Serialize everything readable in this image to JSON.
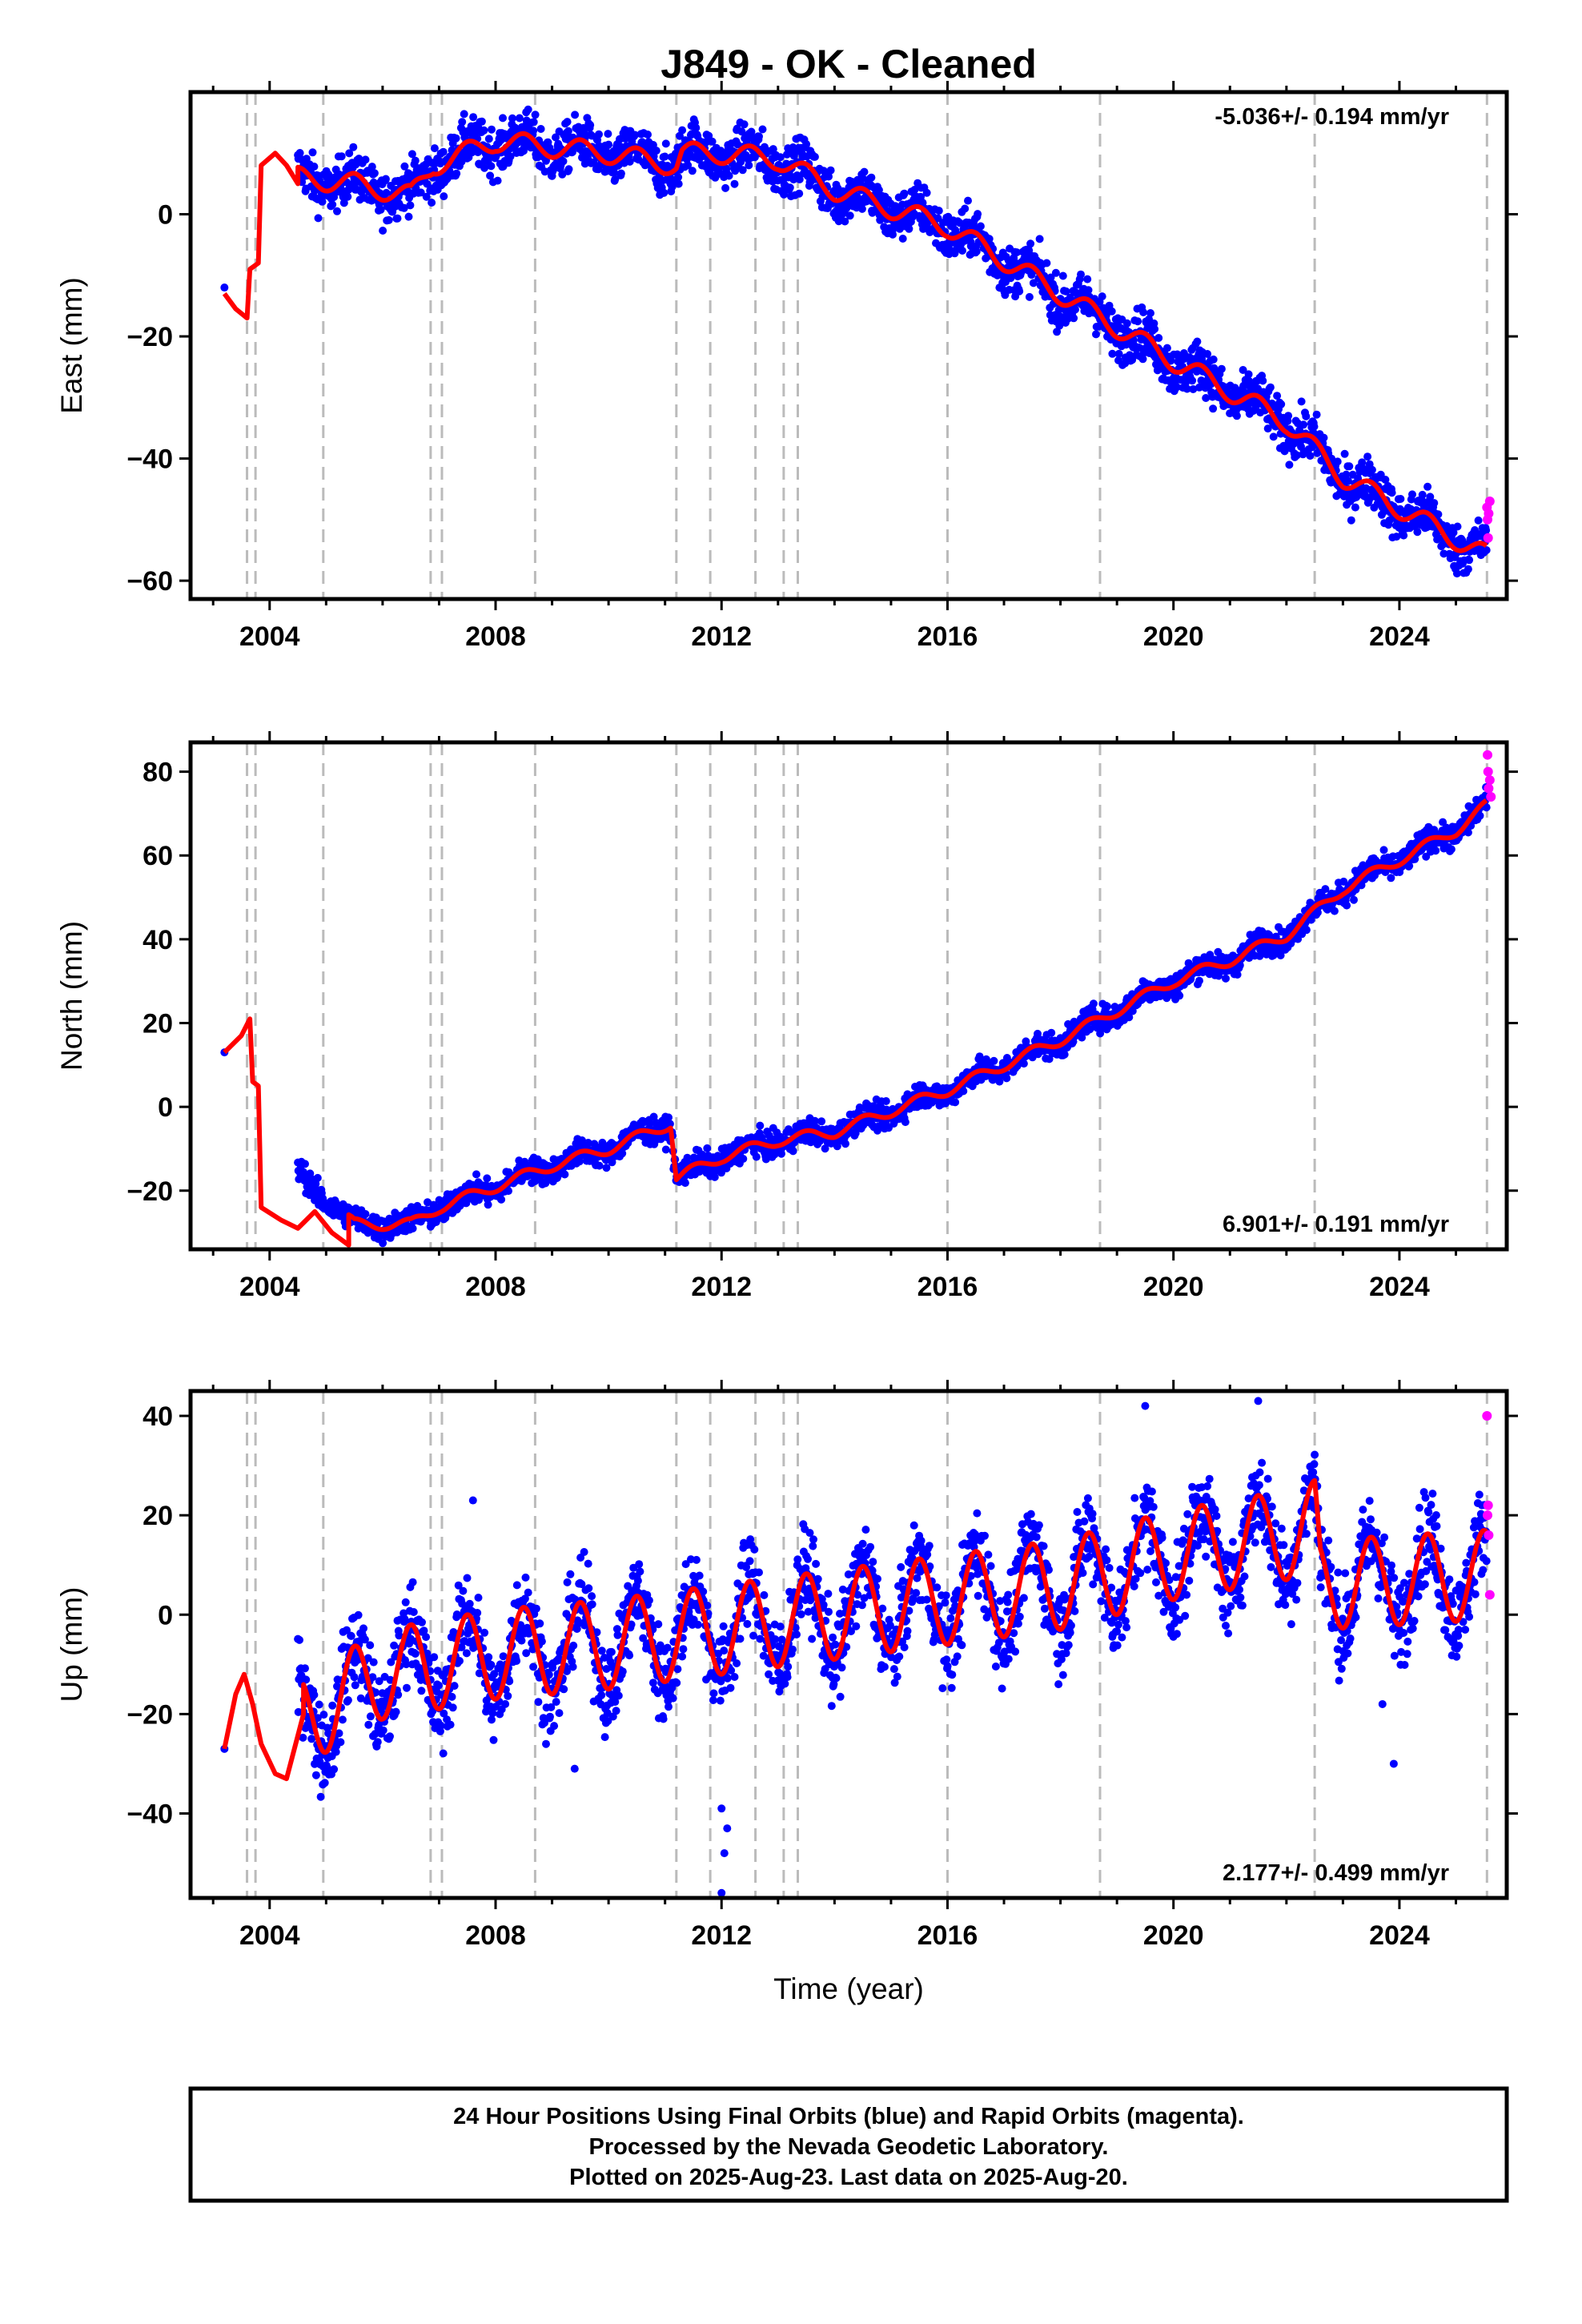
{
  "title": "J849  - OK - Cleaned",
  "xlabel": "Time (year)",
  "colors": {
    "final": "#0000ff",
    "rapid": "#ff00ff",
    "model": "#ff0000",
    "events": "#bbbbbb"
  },
  "footer": {
    "line1": "24 Hour Positions Using Final Orbits (blue) and Rapid Orbits (magenta).",
    "line2": "Processed by the Nevada Geodetic Laboratory.",
    "line3": "Plotted on 2025-Aug-23. Last data on 2025-Aug-20."
  },
  "chart_data": [
    {
      "type": "scatter",
      "component": "East",
      "ylabel": "East (mm)",
      "rate_text": "-5.036+/- 0.194 mm/yr",
      "rate_position": "top-right",
      "xlim": [
        2002.6,
        2025.9
      ],
      "ylim": [
        -63,
        20
      ],
      "xticks": [
        2004,
        2008,
        2012,
        2016,
        2020,
        2024
      ],
      "yticks": [
        -60,
        -40,
        -20,
        0
      ],
      "seasonal_amp": 1.7,
      "noise": 2.0,
      "final_start": 2004.5,
      "final_end": 2025.55,
      "early_points": [
        [
          2003.2,
          -12
        ]
      ],
      "rapid_points": [
        [
          2025.55,
          -48
        ],
        [
          2025.56,
          -50
        ],
        [
          2025.57,
          -53
        ],
        [
          2025.58,
          -49
        ],
        [
          2025.6,
          -47
        ]
      ],
      "trend_knots": [
        [
          2004.5,
          6
        ],
        [
          2005.5,
          5
        ],
        [
          2006.5,
          3
        ],
        [
          2006.9,
          8
        ],
        [
          2008,
          12
        ],
        [
          2009,
          11
        ],
        [
          2010,
          10
        ],
        [
          2011.2,
          8
        ],
        [
          2011.3,
          10
        ],
        [
          2012,
          10
        ],
        [
          2013,
          9
        ],
        [
          2014,
          4
        ],
        [
          2016,
          -2
        ],
        [
          2018,
          -13
        ],
        [
          2020,
          -24
        ],
        [
          2022,
          -34
        ],
        [
          2023,
          -43
        ],
        [
          2025.55,
          -56
        ]
      ],
      "early_model": [
        [
          2003.2,
          -13
        ],
        [
          2003.4,
          -15.5
        ],
        [
          2003.6,
          -17
        ],
        [
          2003.65,
          -9
        ],
        [
          2003.8,
          -8
        ],
        [
          2003.85,
          8
        ],
        [
          2004.1,
          10
        ],
        [
          2004.3,
          8
        ],
        [
          2004.5,
          5
        ]
      ],
      "events": [
        2003.6,
        2003.75,
        2004.95,
        2006.85,
        2007.05,
        2008.7,
        2011.2,
        2011.8,
        2012.6,
        2013.1,
        2013.35,
        2016,
        2018.7,
        2022.5,
        2025.55
      ]
    },
    {
      "type": "scatter",
      "component": "North",
      "ylabel": "North (mm)",
      "rate_text": "6.901+/- 0.191 mm/yr",
      "rate_position": "bottom-right",
      "xlim": [
        2002.6,
        2025.9
      ],
      "ylim": [
        -34,
        87
      ],
      "xticks": [
        2004,
        2008,
        2012,
        2016,
        2020,
        2024
      ],
      "yticks": [
        -20,
        0,
        20,
        40,
        60,
        80
      ],
      "seasonal_amp": 1.3,
      "noise": 1.5,
      "final_start": 2004.5,
      "final_end": 2025.55,
      "early_points": [
        [
          2003.2,
          13
        ]
      ],
      "rapid_points": [
        [
          2025.56,
          84
        ],
        [
          2025.57,
          80
        ],
        [
          2025.58,
          76
        ],
        [
          2025.6,
          78
        ],
        [
          2025.62,
          74
        ]
      ],
      "trend_knots": [
        [
          2004.5,
          -16
        ],
        [
          2005.5,
          -28
        ],
        [
          2006.5,
          -28
        ],
        [
          2007,
          -24
        ],
        [
          2008,
          -19
        ],
        [
          2009,
          -14
        ],
        [
          2010,
          -10
        ],
        [
          2011.1,
          -4
        ],
        [
          2011.2,
          -17
        ],
        [
          2012,
          -12
        ],
        [
          2013,
          -8
        ],
        [
          2014,
          -6
        ],
        [
          2015,
          -1
        ],
        [
          2016,
          4
        ],
        [
          2017,
          10
        ],
        [
          2018,
          16
        ],
        [
          2019,
          23
        ],
        [
          2020,
          30
        ],
        [
          2021,
          35
        ],
        [
          2022,
          41
        ],
        [
          2023,
          52
        ],
        [
          2024,
          59
        ],
        [
          2025,
          66
        ],
        [
          2025.55,
          72
        ]
      ],
      "early_model": [
        [
          2003.2,
          13
        ],
        [
          2003.5,
          17
        ],
        [
          2003.65,
          21
        ],
        [
          2003.7,
          6
        ],
        [
          2003.8,
          5
        ],
        [
          2003.85,
          -24
        ],
        [
          2004.2,
          -27
        ],
        [
          2004.5,
          -29
        ],
        [
          2004.8,
          -25
        ],
        [
          2005.1,
          -30
        ],
        [
          2005.4,
          -33
        ]
      ],
      "events": [
        2003.6,
        2003.75,
        2004.95,
        2006.85,
        2007.05,
        2008.7,
        2011.2,
        2011.8,
        2012.6,
        2013.1,
        2013.35,
        2016,
        2018.7,
        2022.5,
        2025.55
      ]
    },
    {
      "type": "scatter",
      "component": "Up",
      "ylabel": "Up (mm)",
      "rate_text": "2.177+/- 0.499 mm/yr",
      "rate_position": "bottom-right",
      "xlim": [
        2002.6,
        2025.9
      ],
      "ylim": [
        -57,
        45
      ],
      "xticks": [
        2004,
        2008,
        2012,
        2016,
        2020,
        2024
      ],
      "yticks": [
        -40,
        -20,
        0,
        20,
        40
      ],
      "seasonal_amp": 9,
      "noise": 4.5,
      "final_start": 2004.5,
      "final_end": 2025.55,
      "early_points": [
        [
          2003.2,
          -27
        ]
      ],
      "rapid_points": [
        [
          2025.55,
          40
        ],
        [
          2025.56,
          20
        ],
        [
          2025.57,
          22
        ],
        [
          2025.58,
          16
        ],
        [
          2025.6,
          4
        ]
      ],
      "trend_knots": [
        [
          2004.5,
          -22
        ],
        [
          2006,
          -12
        ],
        [
          2008,
          -8
        ],
        [
          2010,
          -6
        ],
        [
          2012,
          -3
        ],
        [
          2014,
          0
        ],
        [
          2016,
          3
        ],
        [
          2018,
          6
        ],
        [
          2020,
          12
        ],
        [
          2022,
          16
        ],
        [
          2022.5,
          18
        ],
        [
          2022.6,
          6
        ],
        [
          2025.55,
          8
        ]
      ],
      "early_model": [
        [
          2003.2,
          -27
        ],
        [
          2003.4,
          -16
        ],
        [
          2003.55,
          -12
        ],
        [
          2003.7,
          -18
        ],
        [
          2003.85,
          -26
        ],
        [
          2004.1,
          -32
        ],
        [
          2004.3,
          -33
        ],
        [
          2004.6,
          -20
        ]
      ],
      "outliers": [
        [
          2007.6,
          23
        ],
        [
          2009.4,
          -31
        ],
        [
          2012.0,
          -56
        ],
        [
          2012.05,
          -48
        ],
        [
          2012.1,
          -43
        ],
        [
          2012.0,
          -39
        ],
        [
          2019.5,
          42
        ],
        [
          2021.5,
          43
        ],
        [
          2023.9,
          -30
        ],
        [
          2023.7,
          -18
        ]
      ],
      "events": [
        2003.6,
        2003.75,
        2004.95,
        2006.85,
        2007.05,
        2008.7,
        2011.2,
        2011.8,
        2012.6,
        2013.1,
        2013.35,
        2016,
        2018.7,
        2022.5,
        2025.55
      ]
    }
  ]
}
